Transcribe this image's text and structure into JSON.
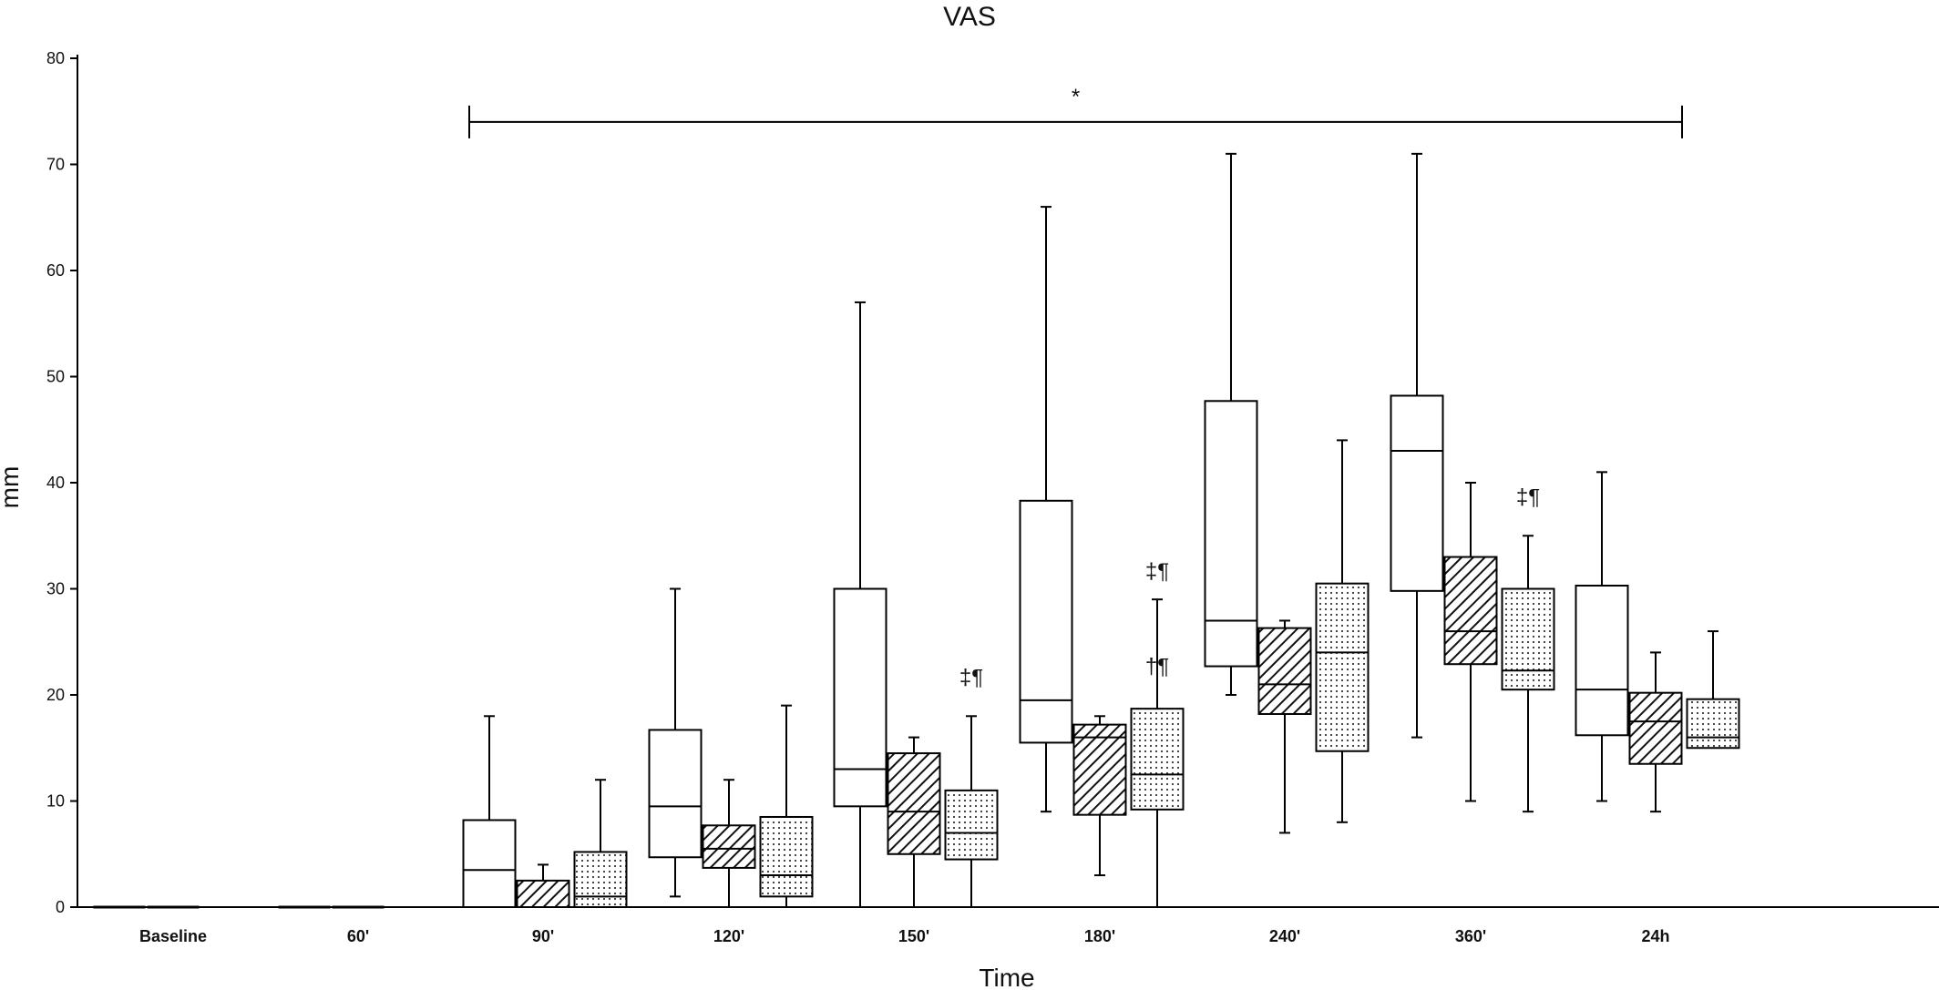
{
  "chart_data": {
    "type": "box",
    "title": "VAS",
    "xlabel": "Time",
    "ylabel": "mm",
    "ylim": [
      0,
      80
    ],
    "yticks": [
      0,
      10,
      20,
      30,
      40,
      50,
      60,
      70,
      80
    ],
    "categories": [
      "Baseline",
      "60'",
      "90'",
      "120'",
      "150'",
      "180'",
      "240'",
      "360'",
      "24h"
    ],
    "series": [
      {
        "fill": "white",
        "boxes": [
          {
            "category": "Baseline",
            "min": 0,
            "q1": 0,
            "median": 0,
            "q3": 0,
            "max": 0
          },
          {
            "category": "60'",
            "min": 0,
            "q1": 0,
            "median": 0,
            "q3": 0,
            "max": 0
          },
          {
            "category": "90'",
            "min": 0,
            "q1": 0,
            "median": 3.5,
            "q3": 8.2,
            "max": 18
          },
          {
            "category": "120'",
            "min": 1,
            "q1": 4.7,
            "median": 9.5,
            "q3": 16.7,
            "max": 30
          },
          {
            "category": "150'",
            "min": 0,
            "q1": 9.5,
            "median": 13,
            "q3": 30,
            "max": 57
          },
          {
            "category": "180'",
            "min": 9,
            "q1": 15.5,
            "median": 19.5,
            "q3": 38.3,
            "max": 66
          },
          {
            "category": "240'",
            "min": 20,
            "q1": 22.7,
            "median": 27,
            "q3": 47.7,
            "max": 71
          },
          {
            "category": "360'",
            "min": 16,
            "q1": 29.8,
            "median": 43,
            "q3": 48.2,
            "max": 71
          },
          {
            "category": "24h",
            "min": 10,
            "q1": 16.2,
            "median": 20.5,
            "q3": 30.3,
            "max": 41
          }
        ]
      },
      {
        "fill": "hatched",
        "boxes": [
          {
            "category": "Baseline",
            "min": 0,
            "q1": 0,
            "median": 0,
            "q3": 0,
            "max": 0
          },
          {
            "category": "60'",
            "min": 0,
            "q1": 0,
            "median": 0,
            "q3": 0,
            "max": 0
          },
          {
            "category": "90'",
            "min": 0,
            "q1": 0,
            "median": 0,
            "q3": 2.5,
            "max": 4
          },
          {
            "category": "120'",
            "min": 0,
            "q1": 3.7,
            "median": 5.5,
            "q3": 7.7,
            "max": 12
          },
          {
            "category": "150'",
            "min": 0,
            "q1": 5,
            "median": 9,
            "q3": 14.5,
            "max": 16
          },
          {
            "category": "180'",
            "min": 3,
            "q1": 8.7,
            "median": 16,
            "q3": 17.2,
            "max": 18
          },
          {
            "category": "240'",
            "min": 7,
            "q1": 18.2,
            "median": 21,
            "q3": 26.3,
            "max": 27
          },
          {
            "category": "360'",
            "min": 10,
            "q1": 22.9,
            "median": 26,
            "q3": 33,
            "max": 40
          },
          {
            "category": "24h",
            "min": 9,
            "q1": 13.5,
            "median": 17.5,
            "q3": 20.2,
            "max": 24
          }
        ]
      },
      {
        "fill": "dotted",
        "boxes": [
          {
            "category": "90'",
            "min": 0,
            "q1": 0,
            "median": 1,
            "q3": 5.2,
            "max": 12
          },
          {
            "category": "120'",
            "min": 0,
            "q1": 1,
            "median": 3,
            "q3": 8.5,
            "max": 19
          },
          {
            "category": "150'",
            "min": 0,
            "q1": 4.5,
            "median": 7,
            "q3": 11,
            "max": 18
          },
          {
            "category": "180'",
            "min": 0,
            "q1": 9.2,
            "median": 12.5,
            "q3": 18.7,
            "max": 29
          },
          {
            "category": "240'",
            "min": 8,
            "q1": 14.7,
            "median": 24,
            "q3": 30.5,
            "max": 44
          },
          {
            "category": "360'",
            "min": 9,
            "q1": 20.5,
            "median": 22.3,
            "q3": 30,
            "max": 35
          },
          {
            "category": "24h",
            "min": 15,
            "q1": 15,
            "median": 16,
            "q3": 19.6,
            "max": 26
          }
        ]
      }
    ],
    "significance_bar": {
      "from": "90'",
      "to": "24h",
      "y": 74,
      "label": "*"
    },
    "annotations": [
      {
        "text": "‡¶",
        "category": "150'",
        "y": 21
      },
      {
        "text": "†¶",
        "category": "180'",
        "y": 22
      },
      {
        "text": "‡¶",
        "category": "180'",
        "y": 31
      },
      {
        "text": "‡¶",
        "category": "360'",
        "y": 38
      }
    ]
  }
}
